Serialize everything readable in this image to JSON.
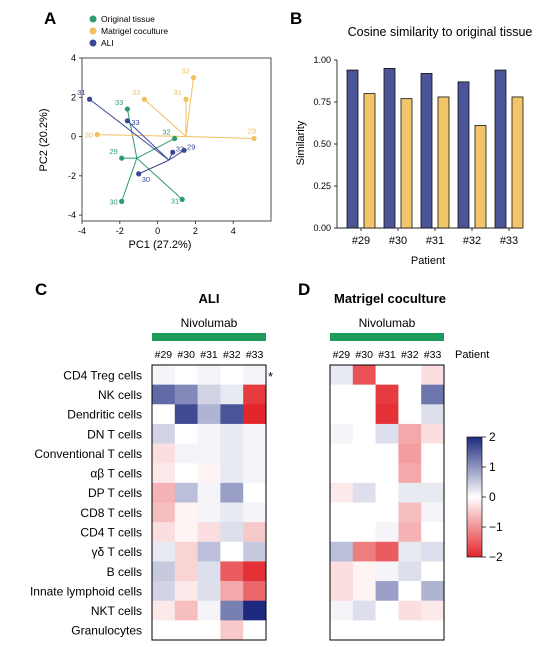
{
  "panels": {
    "a": "A",
    "b": "B",
    "c": "C",
    "d": "D"
  },
  "colors": {
    "original": "#2e9a6e",
    "matrigel": "#f0c060",
    "ali": "#3c4797",
    "bar_blue": "#4a5496",
    "bar_orange": "#f3c56a",
    "green_bar": "#1e9a5a"
  },
  "chart_data": [
    {
      "type": "scatter",
      "xlabel": "PC1 (27.2%)",
      "ylabel": "PC2 (20.2%)",
      "xlim": [
        -4,
        6
      ],
      "ylim": [
        -4.3,
        4
      ],
      "xticks": [
        "-4",
        "-2",
        "0",
        "2",
        "4"
      ],
      "yticks": [
        "-4",
        "-2",
        "0",
        "2",
        "4"
      ],
      "legend": "top-left",
      "centroids": {
        "original": [
          -1.1,
          -1.1
        ],
        "matrigel": [
          1.5,
          0.0
        ],
        "ali": [
          0.6,
          -1.2
        ]
      },
      "series": [
        {
          "name": "Original tissue",
          "key": "original",
          "points": [
            {
              "label": "29",
              "x": -1.9,
              "y": -1.1
            },
            {
              "label": "30",
              "x": -1.9,
              "y": -3.3
            },
            {
              "label": "31",
              "x": 1.3,
              "y": -3.2
            },
            {
              "label": "32",
              "x": 0.9,
              "y": -0.1
            },
            {
              "label": "33",
              "x": -1.6,
              "y": 1.4
            }
          ]
        },
        {
          "name": "Matrigel coculture",
          "key": "matrigel",
          "points": [
            {
              "label": "29",
              "x": 5.1,
              "y": -0.1
            },
            {
              "label": "30",
              "x": -3.2,
              "y": 0.1
            },
            {
              "label": "31",
              "x": 1.5,
              "y": 1.9
            },
            {
              "label": "32",
              "x": 1.9,
              "y": 3.0
            },
            {
              "label": "33",
              "x": -0.7,
              "y": 1.9
            }
          ]
        },
        {
          "name": "ALI",
          "key": "ali",
          "points": [
            {
              "label": "29",
              "x": 1.4,
              "y": -0.7
            },
            {
              "label": "30",
              "x": -1.0,
              "y": -1.9
            },
            {
              "label": "31",
              "x": -3.6,
              "y": 1.9
            },
            {
              "label": "32",
              "x": 0.8,
              "y": -0.8
            },
            {
              "label": "33",
              "x": -1.6,
              "y": 0.8
            }
          ]
        }
      ]
    },
    {
      "type": "bar",
      "title": "Cosine similarity to original tissue",
      "xlabel": "Patient",
      "ylabel": "Similarity",
      "ylim": [
        0,
        1.0
      ],
      "yticks": [
        "0.00",
        "0.25",
        "0.50",
        "0.75",
        "1.00"
      ],
      "categories": [
        "#29",
        "#30",
        "#31",
        "#32",
        "#33"
      ],
      "series": [
        {
          "key": "ali",
          "values": [
            0.94,
            0.95,
            0.92,
            0.87,
            0.94
          ]
        },
        {
          "key": "matrigel",
          "values": [
            0.8,
            0.77,
            0.78,
            0.61,
            0.78
          ]
        }
      ]
    },
    {
      "type": "heatmap",
      "title": "ALI",
      "group_label": "Nivolumab",
      "columns": [
        "#29",
        "#30",
        "#31",
        "#32",
        "#33"
      ],
      "rows": [
        "CD4 Treg cells",
        "NK cells",
        "Dendritic cells",
        "DN T cells",
        "Conventional T cells",
        "αβ T cells",
        "DP T cells",
        "CD8 T cells",
        "CD4 T cells",
        "γδ T cells",
        "B cells",
        "Innate lymphoid cells",
        "NKT cells",
        "Granulocytes"
      ],
      "annotation": "*",
      "values": [
        [
          0.1,
          0.0,
          0.1,
          0.0,
          0.1
        ],
        [
          1.4,
          1.1,
          0.4,
          0.2,
          -1.8
        ],
        [
          0.0,
          1.7,
          0.7,
          1.6,
          -2.0
        ],
        [
          0.4,
          0.0,
          0.1,
          0.2,
          0.1
        ],
        [
          -0.3,
          0.1,
          0.1,
          0.2,
          0.1
        ],
        [
          -0.2,
          0.0,
          -0.1,
          0.2,
          0.1
        ],
        [
          -0.7,
          0.6,
          0.1,
          0.9,
          0.0
        ],
        [
          -0.6,
          -0.1,
          0.1,
          0.2,
          0.1
        ],
        [
          -0.3,
          -0.1,
          -0.3,
          0.3,
          -0.5
        ],
        [
          0.2,
          -0.4,
          0.6,
          0.0,
          0.5
        ],
        [
          0.5,
          -0.4,
          0.3,
          -1.5,
          -1.9
        ],
        [
          0.4,
          -0.2,
          0.3,
          -0.8,
          -1.4
        ],
        [
          -0.2,
          -0.6,
          0.1,
          1.2,
          2.0
        ],
        [
          0.0,
          0.0,
          0.0,
          -0.5,
          0.0
        ]
      ]
    },
    {
      "type": "heatmap",
      "title": "Matrigel coculture",
      "group_label": "Nivolumab",
      "column_axis_label": "Patient",
      "columns": [
        "#29",
        "#30",
        "#31",
        "#32",
        "#33"
      ],
      "rows": [
        "CD4 Treg cells",
        "NK cells",
        "Dendritic cells",
        "DN T cells",
        "Conventional T cells",
        "αβ T cells",
        "DP T cells",
        "CD8 T cells",
        "CD4 T cells",
        "γδ T cells",
        "B cells",
        "Innate lymphoid cells",
        "NKT cells",
        "Granulocytes"
      ],
      "values": [
        [
          0.2,
          -1.6,
          0.0,
          0.0,
          -0.3
        ],
        [
          0.0,
          0.0,
          -1.8,
          0.0,
          1.3
        ],
        [
          0.0,
          0.0,
          -1.9,
          0.0,
          0.3
        ],
        [
          0.1,
          0.0,
          0.3,
          -0.8,
          -0.3
        ],
        [
          0.0,
          0.0,
          0.0,
          -0.9,
          0.0
        ],
        [
          0.0,
          0.0,
          0.0,
          -0.8,
          0.0
        ],
        [
          -0.2,
          0.3,
          0.0,
          0.2,
          0.2
        ],
        [
          0.0,
          0.0,
          0.0,
          -0.6,
          0.1
        ],
        [
          0.0,
          0.0,
          0.1,
          -0.7,
          0.0
        ],
        [
          0.6,
          -1.2,
          -1.5,
          0.2,
          0.3
        ],
        [
          -0.3,
          -0.1,
          0.1,
          0.3,
          0.0
        ],
        [
          -0.3,
          -0.1,
          0.9,
          0.0,
          0.7
        ],
        [
          0.1,
          0.3,
          0.0,
          -0.3,
          -0.2
        ],
        [
          0.0,
          0.0,
          0.0,
          0.0,
          0.0
        ]
      ],
      "colorbar": {
        "ticks": [
          "2",
          "1",
          "0",
          "−1",
          "−2"
        ],
        "range": [
          -2,
          2
        ]
      }
    }
  ]
}
